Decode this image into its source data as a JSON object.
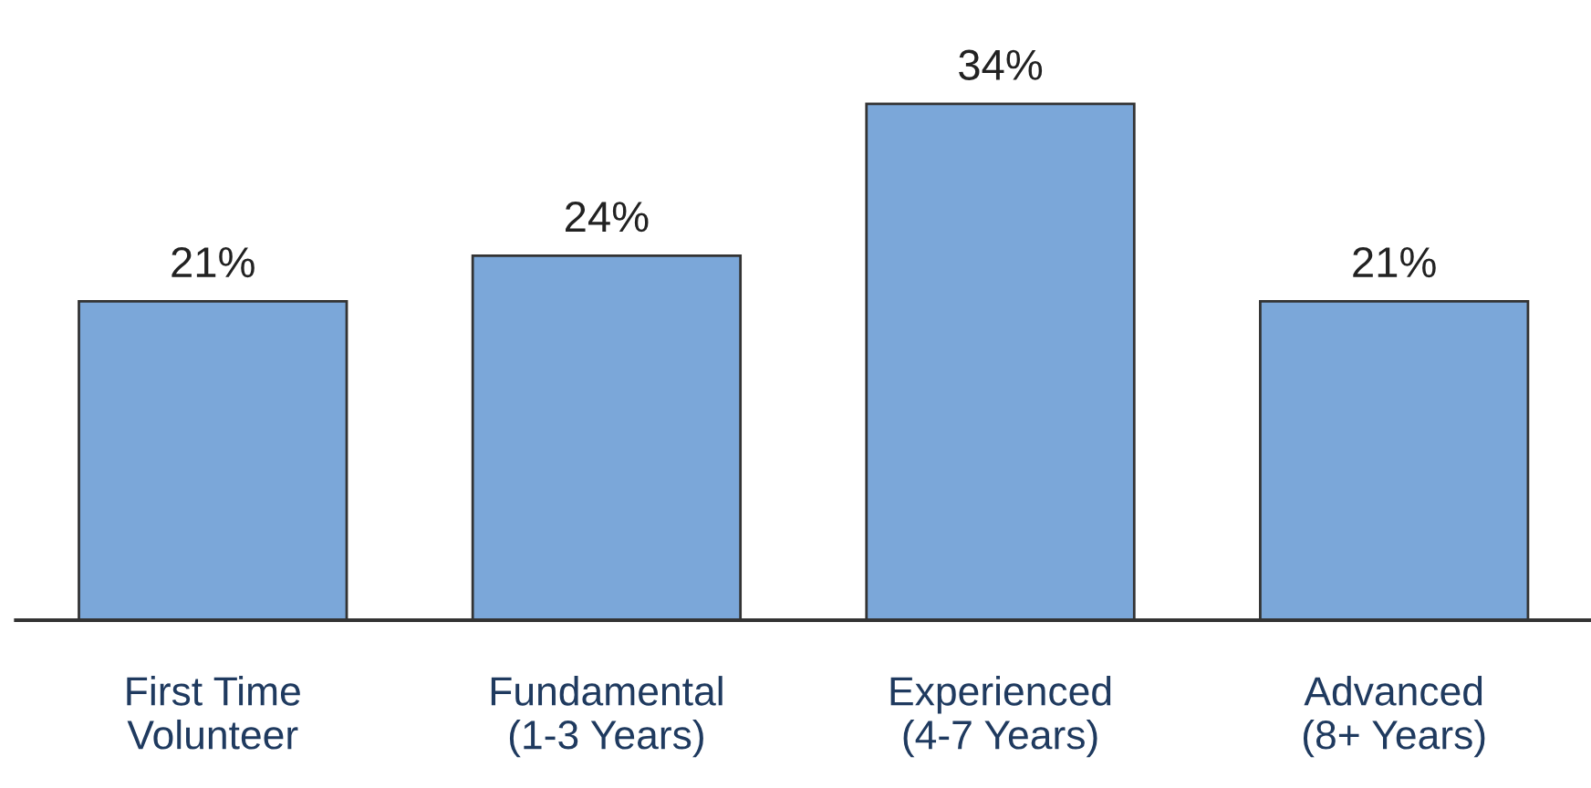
{
  "chart_data": {
    "type": "bar",
    "categories": [
      "First Time\nVolunteer",
      "Fundamental\n(1-3 Years)",
      "Experienced\n(4-7 Years)",
      "Advanced\n(8+ Years)"
    ],
    "values": [
      21,
      24,
      34,
      21
    ],
    "value_labels": [
      "21%",
      "24%",
      "34%",
      "21%"
    ],
    "color": "#7ba7d9",
    "grid": false,
    "legend": false
  }
}
